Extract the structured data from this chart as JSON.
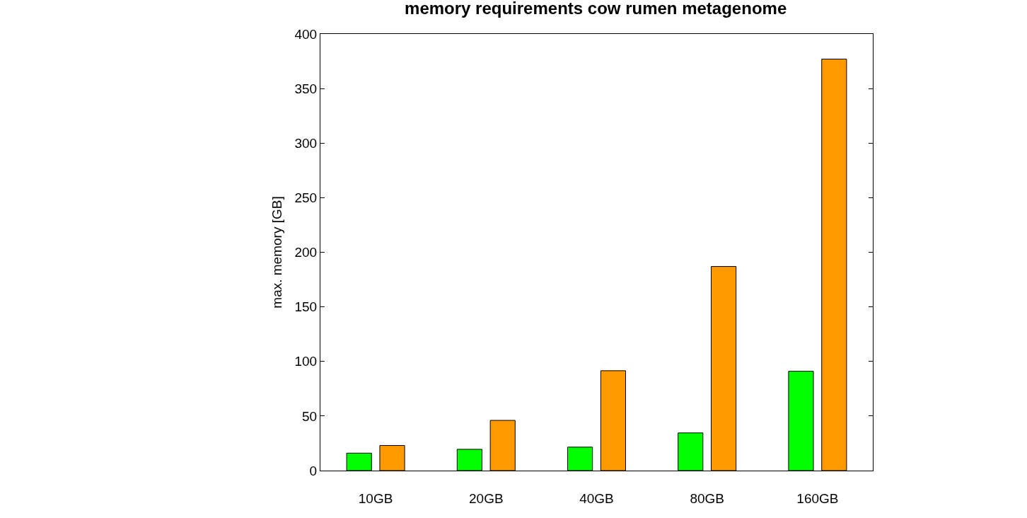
{
  "chart_data": {
    "type": "bar",
    "title": "memory requirements cow rumen metagenome",
    "ylabel": "max. memory [GB]",
    "categories": [
      "10GB",
      "20GB",
      "40GB",
      "80GB",
      "160GB"
    ],
    "series": [
      {
        "color": "#00ff00",
        "values": [
          16,
          19.5,
          21.5,
          34.5,
          91
        ]
      },
      {
        "color": "#ff9900",
        "values": [
          23,
          46,
          91.5,
          187,
          377
        ]
      }
    ],
    "ylim": [
      0,
      400
    ],
    "yticks": [
      0,
      50,
      100,
      150,
      200,
      250,
      300,
      350,
      400
    ],
    "grid": false
  }
}
